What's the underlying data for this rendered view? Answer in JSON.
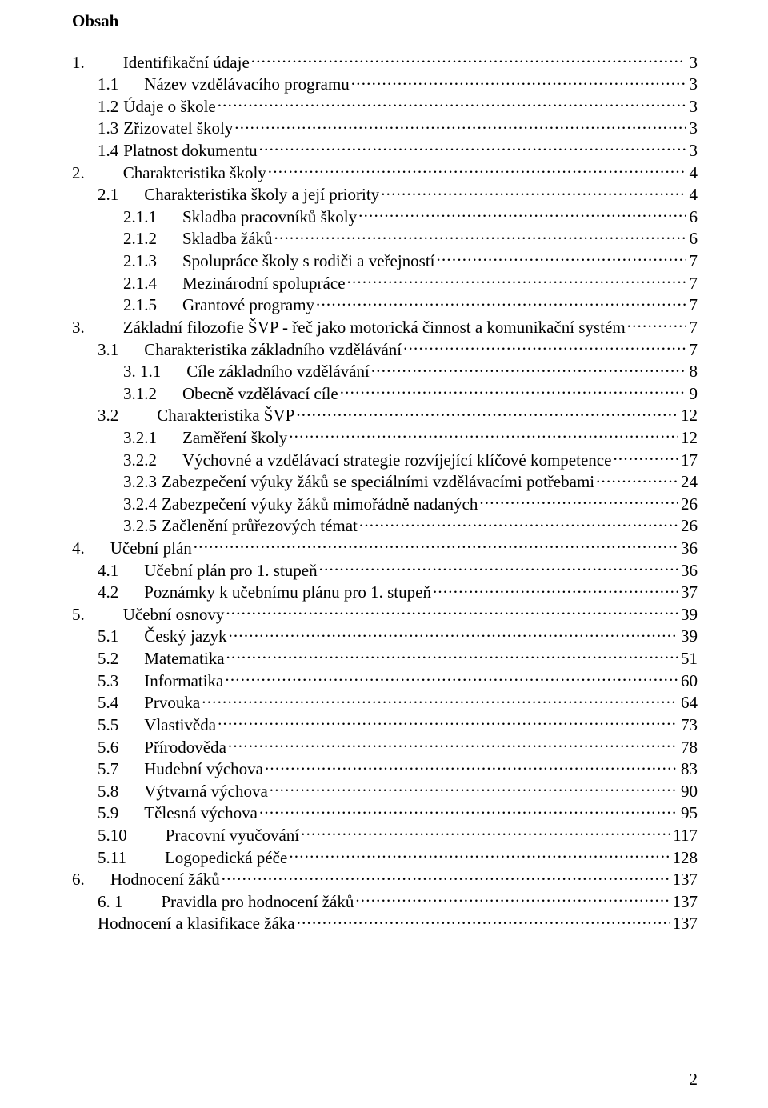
{
  "title": "Obsah",
  "page_number": "2",
  "colors": {
    "text": "#000000",
    "background": "#ffffff"
  },
  "typography": {
    "family": "Times New Roman",
    "size_pt": 16,
    "title_weight": "bold"
  },
  "toc": [
    {
      "indent": 0,
      "num": "1.",
      "numClass": "gap-after-wide",
      "label": "Identifikační údaje",
      "page": "3"
    },
    {
      "indent": 1,
      "num": "1.1",
      "numClass": "gap-after",
      "label": "Název vzdělávacího programu",
      "page": "3"
    },
    {
      "indent": 1,
      "num": "1.2",
      "numClass": "",
      "label": "Údaje o škole",
      "page": "3"
    },
    {
      "indent": 1,
      "num": "1.3",
      "numClass": "",
      "label": "Zřizovatel školy",
      "page": "3"
    },
    {
      "indent": 1,
      "num": "1.4",
      "numClass": "",
      "label": "Platnost dokumentu",
      "page": "3"
    },
    {
      "indent": 0,
      "num": "2.",
      "numClass": "gap-after-wide",
      "label": "Charakteristika školy",
      "page": "4"
    },
    {
      "indent": 1,
      "num": "2.1",
      "numClass": "gap-after",
      "label": "Charakteristika školy a její priority",
      "page": "4"
    },
    {
      "indent": 2,
      "num": "2.1.1",
      "numClass": "gap-after",
      "label": "Skladba pracovníků školy",
      "page": "6"
    },
    {
      "indent": 2,
      "num": "2.1.2",
      "numClass": "gap-after",
      "label": "Skladba žáků",
      "page": "6"
    },
    {
      "indent": 2,
      "num": "2.1.3",
      "numClass": "gap-after",
      "label": "Spolupráce školy s rodiči a veřejností",
      "page": "7"
    },
    {
      "indent": 2,
      "num": "2.1.4",
      "numClass": "gap-after",
      "label": "Mezinárodní spolupráce",
      "page": "7"
    },
    {
      "indent": 2,
      "num": "2.1.5",
      "numClass": "gap-after",
      "label": "Grantové programy",
      "page": "7"
    },
    {
      "indent": 0,
      "num": "3.",
      "numClass": "gap-after-wide",
      "label": "Základní filozofie ŠVP - řeč jako motorická činnost a  komunikační systém",
      "page": "7"
    },
    {
      "indent": 1,
      "num": "3.1",
      "numClass": "gap-after",
      "label": "Charakteristika základního vzdělávání",
      "page": "7"
    },
    {
      "indent": 2,
      "num": "3. 1.1",
      "numClass": "gap-after",
      "label": "Cíle základního vzdělávání",
      "page": "8"
    },
    {
      "indent": 2,
      "num": "3.1.2",
      "numClass": "gap-after",
      "label": "Obecně vzdělávací cíle",
      "page": "9"
    },
    {
      "indent": 1,
      "num": "3.2",
      "numClass": "gap-after-wide",
      "label": "Charakteristika ŠVP",
      "page": "12"
    },
    {
      "indent": 2,
      "num": "3.2.1",
      "numClass": "gap-after",
      "label": "Zaměření školy",
      "page": "12"
    },
    {
      "indent": 2,
      "num": "3.2.2",
      "numClass": "gap-after",
      "label": "Výchovné a vzdělávací strategie rozvíjející klíčové kompetence",
      "page": "17"
    },
    {
      "indent": 2,
      "num": "3.2.3",
      "numClass": "",
      "label": "Zabezpečení výuky žáků se speciálními vzdělávacími potřebami",
      "page": "24"
    },
    {
      "indent": 2,
      "num": "3.2.4",
      "numClass": "",
      "label": "Zabezpečení výuky žáků mimořádně nadaných",
      "page": "26"
    },
    {
      "indent": 2,
      "num": "3.2.5",
      "numClass": "",
      "label": "Začlenění průřezových témat",
      "page": "26"
    },
    {
      "indent": 0,
      "num": "4.",
      "numClass": "gap-after",
      "label": "Učební plán",
      "page": "36"
    },
    {
      "indent": 1,
      "num": "4.1",
      "numClass": "gap-after",
      "label": "Učební plán pro 1. stupeň",
      "page": "36"
    },
    {
      "indent": 1,
      "num": "4.2",
      "numClass": "gap-after",
      "label": "Poznámky k učebnímu plánu pro 1. stupeň",
      "page": "37"
    },
    {
      "indent": 0,
      "num": "5.",
      "numClass": "gap-after-wide",
      "label": "Učební osnovy",
      "page": "39"
    },
    {
      "indent": 1,
      "num": "5.1",
      "numClass": "gap-after",
      "label": "Český jazyk",
      "page": "39"
    },
    {
      "indent": 1,
      "num": "5.2",
      "numClass": "gap-after",
      "label": "Matematika",
      "page": "51"
    },
    {
      "indent": 1,
      "num": "5.3",
      "numClass": "gap-after",
      "label": "Informatika",
      "page": "60"
    },
    {
      "indent": 1,
      "num": "5.4",
      "numClass": "gap-after",
      "label": "Prvouka",
      "page": "64"
    },
    {
      "indent": 1,
      "num": "5.5",
      "numClass": "gap-after",
      "label": "Vlastivěda",
      "page": "73"
    },
    {
      "indent": 1,
      "num": "5.6",
      "numClass": "gap-after",
      "label": "Přírodověda",
      "page": "78"
    },
    {
      "indent": 1,
      "num": "5.7",
      "numClass": "gap-after",
      "label": "Hudební výchova",
      "page": "83"
    },
    {
      "indent": 1,
      "num": "5.8",
      "numClass": "gap-after",
      "label": "Výtvarná výchova",
      "page": "90"
    },
    {
      "indent": 1,
      "num": "5.9",
      "numClass": "gap-after",
      "label": "Tělesná výchova",
      "page": "95"
    },
    {
      "indent": 1,
      "num": "5.10",
      "numClass": "gap-after-wide",
      "label": "Pracovní vyučování",
      "page": "117"
    },
    {
      "indent": 1,
      "num": "5.11",
      "numClass": "gap-after-wide",
      "label": "Logopedická péče",
      "page": "128"
    },
    {
      "indent": 0,
      "num": "6.",
      "numClass": "gap-after",
      "label": "Hodnocení žáků",
      "page": "137"
    },
    {
      "indent": 1,
      "num": "6. 1",
      "numClass": "gap-after-wide",
      "label": "Pravidla pro hodnocení žáků",
      "page": "137"
    },
    {
      "indent": 1,
      "num": "",
      "numClass": "",
      "label": "Hodnocení a klasifikace žáka",
      "page": "137"
    }
  ]
}
